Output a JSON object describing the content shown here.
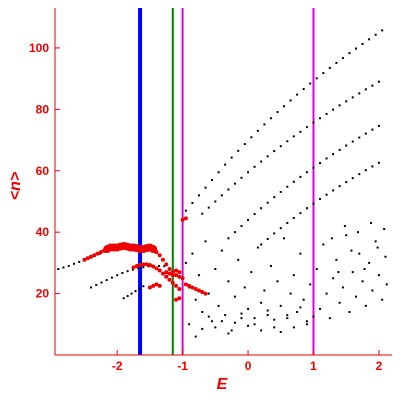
{
  "chart_data": {
    "type": "scatter",
    "xlabel": "E",
    "ylabel": "<n>",
    "xlim": [
      -2.95,
      2.2
    ],
    "ylim": [
      0,
      113
    ],
    "x_ticks": [
      -2,
      -1,
      0,
      1,
      2
    ],
    "x_tick_labels": [
      "-2",
      "-1",
      "0",
      "1",
      "2"
    ],
    "y_ticks": [
      20,
      40,
      60,
      80,
      100
    ],
    "y_tick_labels": [
      "20",
      "40",
      "60",
      "80",
      "100"
    ],
    "grid": false,
    "legend": "none",
    "vertical_lines": [
      {
        "x": -1.65,
        "color": "#0000ff"
      },
      {
        "x": -1.15,
        "color": "#008000"
      },
      {
        "x": -1.0,
        "color": "#dd00dd"
      },
      {
        "x": 1.0,
        "color": "#dd00dd"
      }
    ],
    "series": [
      {
        "color": "#000000",
        "points": [
          [
            -2.9,
            28
          ],
          [
            -2.82,
            28.5
          ],
          [
            -2.74,
            29
          ],
          [
            -2.66,
            29.7
          ],
          [
            -2.58,
            30.3
          ],
          [
            -2.5,
            31
          ],
          [
            -2.42,
            31.7
          ],
          [
            -2.34,
            32.3
          ],
          [
            -2.26,
            33
          ],
          [
            -2.18,
            33.6
          ],
          [
            -2.1,
            34.2
          ],
          [
            -2.4,
            22
          ],
          [
            -2.32,
            22.8
          ],
          [
            -2.24,
            23.6
          ],
          [
            -2.16,
            24.4
          ],
          [
            -2.08,
            25.2
          ],
          [
            -2.0,
            26
          ],
          [
            -1.92,
            26.7
          ],
          [
            -1.84,
            27.3
          ],
          [
            -1.76,
            27.8
          ],
          [
            -1.68,
            28.3
          ],
          [
            -1.6,
            28.6
          ],
          [
            -1.52,
            28.9
          ],
          [
            -1.44,
            29
          ],
          [
            -1.36,
            29
          ],
          [
            -1.28,
            28.9
          ],
          [
            -1.9,
            18.5
          ],
          [
            -1.84,
            19.2
          ],
          [
            -1.78,
            20
          ],
          [
            -1.72,
            20.8
          ],
          [
            -1.66,
            21.6
          ],
          [
            -1.6,
            22.4
          ],
          [
            -0.95,
            47
          ],
          [
            -0.85,
            49.5
          ],
          [
            -0.75,
            52
          ],
          [
            -0.65,
            54.5
          ],
          [
            -0.55,
            57
          ],
          [
            -0.45,
            59.5
          ],
          [
            -0.35,
            62
          ],
          [
            -0.25,
            64.3
          ],
          [
            -0.15,
            66.5
          ],
          [
            -0.05,
            68.7
          ],
          [
            0.05,
            70.9
          ],
          [
            0.15,
            73
          ],
          [
            0.25,
            75.1
          ],
          [
            0.35,
            77.1
          ],
          [
            0.45,
            79.1
          ],
          [
            0.55,
            81
          ],
          [
            0.65,
            82.9
          ],
          [
            0.75,
            84.8
          ],
          [
            0.85,
            86.6
          ],
          [
            0.95,
            88.4
          ],
          [
            1.05,
            90.1
          ],
          [
            1.15,
            91.8
          ],
          [
            1.25,
            93.5
          ],
          [
            1.35,
            95.1
          ],
          [
            1.45,
            96.7
          ],
          [
            1.55,
            98.3
          ],
          [
            1.65,
            99.8
          ],
          [
            1.75,
            101.3
          ],
          [
            1.85,
            102.8
          ],
          [
            1.95,
            104.3
          ],
          [
            2.05,
            105.7
          ],
          [
            -0.7,
            46
          ],
          [
            -0.6,
            48
          ],
          [
            -0.5,
            50
          ],
          [
            -0.4,
            52
          ],
          [
            -0.3,
            53.9
          ],
          [
            -0.2,
            55.8
          ],
          [
            -0.1,
            57.7
          ],
          [
            0.0,
            59.5
          ],
          [
            0.1,
            61.3
          ],
          [
            0.2,
            63
          ],
          [
            0.3,
            64.7
          ],
          [
            0.4,
            66.4
          ],
          [
            0.5,
            68
          ],
          [
            0.6,
            69.6
          ],
          [
            0.7,
            71.2
          ],
          [
            0.8,
            72.7
          ],
          [
            0.9,
            74.2
          ],
          [
            1.0,
            75.7
          ],
          [
            1.1,
            77.1
          ],
          [
            1.2,
            78.5
          ],
          [
            1.3,
            79.9
          ],
          [
            1.4,
            81.3
          ],
          [
            1.5,
            82.6
          ],
          [
            1.6,
            83.9
          ],
          [
            1.7,
            85.2
          ],
          [
            1.8,
            86.5
          ],
          [
            1.9,
            87.7
          ],
          [
            2.0,
            89
          ],
          [
            -0.3,
            38
          ],
          [
            -0.2,
            40
          ],
          [
            -0.1,
            42
          ],
          [
            0.0,
            44
          ],
          [
            0.1,
            45.9
          ],
          [
            0.2,
            47.8
          ],
          [
            0.3,
            49.6
          ],
          [
            0.4,
            51.4
          ],
          [
            0.5,
            53.1
          ],
          [
            0.6,
            54.8
          ],
          [
            0.7,
            56.4
          ],
          [
            0.8,
            58
          ],
          [
            0.9,
            59.5
          ],
          [
            1.0,
            61
          ],
          [
            1.1,
            62.5
          ],
          [
            1.2,
            64
          ],
          [
            1.3,
            65.4
          ],
          [
            1.4,
            66.8
          ],
          [
            1.5,
            68.2
          ],
          [
            1.6,
            69.5
          ],
          [
            1.7,
            70.8
          ],
          [
            1.8,
            72.1
          ],
          [
            1.9,
            73.4
          ],
          [
            2.0,
            74.6
          ],
          [
            0.2,
            36
          ],
          [
            0.3,
            37.8
          ],
          [
            0.4,
            39.6
          ],
          [
            0.5,
            41.3
          ],
          [
            0.6,
            43
          ],
          [
            0.7,
            44.6
          ],
          [
            0.8,
            46.2
          ],
          [
            0.9,
            47.8
          ],
          [
            1.0,
            49.3
          ],
          [
            1.1,
            50.8
          ],
          [
            1.2,
            52.2
          ],
          [
            1.3,
            53.6
          ],
          [
            1.4,
            55
          ],
          [
            1.5,
            56.3
          ],
          [
            1.6,
            57.6
          ],
          [
            1.7,
            58.9
          ],
          [
            1.8,
            60.2
          ],
          [
            1.9,
            61.4
          ],
          [
            2.0,
            62.6
          ],
          [
            -0.95,
            30
          ],
          [
            -0.9,
            22
          ],
          [
            -0.85,
            33
          ],
          [
            -0.8,
            18
          ],
          [
            -0.75,
            26
          ],
          [
            -0.7,
            14
          ],
          [
            -0.65,
            37
          ],
          [
            -0.6,
            20
          ],
          [
            -0.55,
            11
          ],
          [
            -0.5,
            28
          ],
          [
            -0.45,
            16
          ],
          [
            -0.4,
            34
          ],
          [
            -0.35,
            13
          ],
          [
            -0.3,
            24
          ],
          [
            -0.25,
            8
          ],
          [
            -0.2,
            19
          ],
          [
            -0.15,
            31
          ],
          [
            -0.1,
            12
          ],
          [
            -0.05,
            22
          ],
          [
            0.0,
            15
          ],
          [
            0.05,
            27
          ],
          [
            0.1,
            10
          ],
          [
            0.15,
            35
          ],
          [
            0.2,
            17
          ],
          [
            0.25,
            21
          ],
          [
            0.3,
            13
          ],
          [
            0.35,
            29
          ],
          [
            0.4,
            9
          ],
          [
            0.45,
            24
          ],
          [
            0.5,
            16
          ],
          [
            0.55,
            38
          ],
          [
            0.6,
            12
          ],
          [
            0.65,
            20
          ],
          [
            0.7,
            26
          ],
          [
            0.75,
            14
          ],
          [
            0.8,
            33
          ],
          [
            0.85,
            18
          ],
          [
            0.9,
            11
          ],
          [
            0.95,
            23
          ],
          [
            1.05,
            28
          ],
          [
            1.1,
            15
          ],
          [
            1.15,
            36
          ],
          [
            1.2,
            20
          ],
          [
            1.25,
            12
          ],
          [
            1.3,
            25
          ],
          [
            1.35,
            31
          ],
          [
            1.4,
            17
          ],
          [
            1.45,
            22
          ],
          [
            1.5,
            39
          ],
          [
            1.55,
            14
          ],
          [
            1.6,
            27
          ],
          [
            1.65,
            19
          ],
          [
            1.7,
            33
          ],
          [
            1.75,
            24
          ],
          [
            1.8,
            16
          ],
          [
            1.85,
            30
          ],
          [
            1.9,
            21
          ],
          [
            1.95,
            37
          ],
          [
            2.0,
            26
          ],
          [
            2.05,
            18
          ],
          [
            2.1,
            32
          ],
          [
            2.12,
            23
          ],
          [
            2.08,
            41
          ],
          [
            1.98,
            35
          ],
          [
            1.88,
            43
          ],
          [
            1.78,
            28
          ],
          [
            1.68,
            40
          ],
          [
            1.58,
            34
          ],
          [
            1.48,
            42
          ],
          [
            1.38,
            27
          ],
          [
            1.28,
            38
          ],
          [
            -0.9,
            10
          ],
          [
            -0.8,
            6
          ],
          [
            -0.7,
            8.5
          ],
          [
            -0.6,
            12.5
          ],
          [
            -0.5,
            9
          ],
          [
            -0.4,
            11
          ],
          [
            -0.3,
            7
          ],
          [
            -0.2,
            10.5
          ],
          [
            -0.1,
            13.5
          ],
          [
            0.0,
            9.5
          ],
          [
            0.1,
            12
          ],
          [
            0.2,
            8
          ],
          [
            0.3,
            14.5
          ],
          [
            0.4,
            11.5
          ],
          [
            0.5,
            7.5
          ],
          [
            0.6,
            13
          ],
          [
            0.7,
            9
          ],
          [
            0.8,
            15.5
          ],
          [
            0.9,
            10
          ],
          [
            1.0,
            12.5
          ]
        ]
      },
      {
        "color": "#ee0000",
        "points": [
          [
            -2.5,
            31
          ],
          [
            -2.45,
            31.5
          ],
          [
            -2.4,
            32
          ],
          [
            -2.35,
            32.5
          ],
          [
            -2.3,
            33
          ],
          [
            -2.25,
            33.5
          ],
          [
            -2.2,
            34
          ],
          [
            -2.15,
            34.5
          ],
          [
            -2.1,
            35
          ],
          [
            -2.05,
            35
          ],
          [
            -2.0,
            35
          ],
          [
            -1.95,
            35.3
          ],
          [
            -1.9,
            35.5
          ],
          [
            -1.85,
            35.3
          ],
          [
            -1.8,
            35
          ],
          [
            -1.75,
            35
          ],
          [
            -1.7,
            34.8
          ],
          [
            -1.65,
            34.5
          ],
          [
            -1.6,
            34.5
          ],
          [
            -1.55,
            34.8
          ],
          [
            -1.5,
            35
          ],
          [
            -1.45,
            34.5
          ],
          [
            -1.4,
            33.5
          ],
          [
            -1.35,
            32.5
          ],
          [
            -1.3,
            31
          ],
          [
            -1.25,
            29.5
          ],
          [
            -1.2,
            28
          ],
          [
            -1.15,
            27
          ],
          [
            -1.1,
            26
          ],
          [
            -1.05,
            25.5
          ],
          [
            -1.0,
            25
          ],
          [
            -0.95,
            23
          ],
          [
            -0.9,
            22.5
          ],
          [
            -0.85,
            22
          ],
          [
            -0.8,
            21.5
          ],
          [
            -0.75,
            21
          ],
          [
            -0.7,
            20.5
          ],
          [
            -0.65,
            20
          ],
          [
            -1.75,
            28.5
          ],
          [
            -1.7,
            29
          ],
          [
            -1.65,
            29.3
          ],
          [
            -1.6,
            29.5
          ],
          [
            -1.55,
            29.5
          ],
          [
            -1.5,
            29.3
          ],
          [
            -1.45,
            28.8
          ],
          [
            -1.4,
            28.2
          ],
          [
            -1.35,
            27.5
          ],
          [
            -1.3,
            26.5
          ],
          [
            -1.25,
            25.5
          ],
          [
            -1.2,
            24.5
          ],
          [
            -1.15,
            23.5
          ],
          [
            -1.1,
            22.5
          ],
          [
            -1.05,
            21.5
          ],
          [
            -1.25,
            27
          ],
          [
            -1.2,
            26.5
          ],
          [
            -1.15,
            26
          ],
          [
            -1.1,
            27.5
          ],
          [
            -1.05,
            27
          ],
          [
            -1.5,
            22
          ],
          [
            -1.45,
            22.5
          ],
          [
            -1.4,
            23
          ],
          [
            -1.35,
            22.5
          ],
          [
            -1.1,
            18
          ],
          [
            -1.05,
            18.5
          ],
          [
            -1.0,
            44
          ],
          [
            -0.95,
            44.5
          ]
        ]
      }
    ]
  }
}
